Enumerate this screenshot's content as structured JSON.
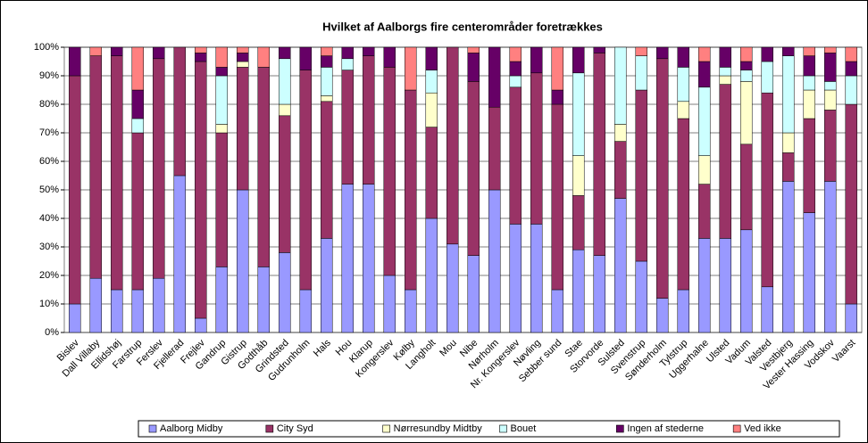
{
  "chart_data": {
    "type": "stacked_bar",
    "title": "Hvilket af Aalborgs fire centerområder foretrækkes",
    "categories": [
      "Bislev",
      "Dall Villaby",
      "Ellidshøj",
      "Farstrup",
      "Ferslev",
      "Fjellerad",
      "Frejlev",
      "Gandrup",
      "Gistrup",
      "Godthåb",
      "Grindsted",
      "Gudrunholm",
      "Hals",
      "Hou",
      "Klarup",
      "Kongerslev",
      "Kølby",
      "Langholt",
      "Mou",
      "Nibe",
      "Nørholm",
      "Nr. Kongerslev",
      "Nøvling",
      "Sebber sund",
      "Stae",
      "Storvorde",
      "Sulsted",
      "Svenstrup",
      "Sønderholm",
      "Tylstrup",
      "Uggerhalne",
      "Ulsted",
      "Vadum",
      "Valsted",
      "Vestbjerg",
      "Vester Hassing",
      "Vodskov",
      "Vaarst"
    ],
    "series": [
      {
        "name": "Aalborg Midby",
        "color": "#9999ff",
        "values": [
          10,
          19,
          15,
          15,
          19,
          55,
          5,
          23,
          50,
          23,
          28,
          15,
          33,
          52,
          52,
          20,
          15,
          40,
          31,
          27,
          50,
          38,
          38,
          15,
          29,
          27,
          47,
          25,
          12,
          15,
          33,
          33,
          36,
          16,
          53,
          42,
          53,
          10
        ]
      },
      {
        "name": "City Syd",
        "color": "#993366",
        "values": [
          80,
          78,
          82,
          55,
          77,
          45,
          90,
          47,
          43,
          70,
          48,
          77,
          48,
          40,
          45,
          73,
          70,
          32,
          69,
          61,
          29,
          48,
          53,
          65,
          19,
          71,
          20,
          60,
          84,
          60,
          19,
          54,
          30,
          68,
          10,
          33,
          25,
          70
        ]
      },
      {
        "name": "Nørresundby Midtby",
        "color": "#ffffcc",
        "values": [
          0,
          0,
          0,
          0,
          0,
          0,
          0,
          3,
          2,
          0,
          4,
          0,
          2,
          0,
          0,
          0,
          0,
          12,
          0,
          0,
          0,
          0,
          0,
          0,
          14,
          0,
          6,
          0,
          0,
          6,
          10,
          3,
          22,
          0,
          7,
          10,
          7,
          0
        ]
      },
      {
        "name": "Bouet",
        "color": "#ccffff",
        "values": [
          0,
          0,
          0,
          5,
          0,
          0,
          0,
          17,
          0,
          0,
          16,
          0,
          10,
          4,
          0,
          0,
          0,
          8,
          0,
          0,
          0,
          4,
          0,
          0,
          29,
          0,
          27,
          12,
          0,
          12,
          24,
          3,
          4,
          11,
          27,
          5,
          3,
          10
        ]
      },
      {
        "name": "Ingen af stederne",
        "color": "#660066",
        "values": [
          10,
          0,
          3,
          10,
          4,
          0,
          3,
          3,
          3,
          0,
          4,
          8,
          4,
          4,
          3,
          7,
          0,
          8,
          0,
          10,
          21,
          5,
          9,
          5,
          9,
          2,
          0,
          0,
          4,
          7,
          9,
          7,
          3,
          5,
          3,
          7,
          10,
          5
        ]
      },
      {
        "name": "Ved ikke",
        "color": "#ff8080",
        "values": [
          0,
          3,
          0,
          15,
          0,
          0,
          2,
          7,
          2,
          7,
          0,
          0,
          3,
          0,
          0,
          0,
          15,
          0,
          0,
          2,
          0,
          5,
          0,
          15,
          0,
          0,
          0,
          3,
          0,
          0,
          5,
          0,
          5,
          0,
          0,
          3,
          2,
          5
        ]
      }
    ],
    "ylim": [
      0,
      100
    ],
    "yticks": [
      {
        "value": 0,
        "label": "0%"
      },
      {
        "value": 10,
        "label": "10%"
      },
      {
        "value": 20,
        "label": "20%"
      },
      {
        "value": 30,
        "label": "30%"
      },
      {
        "value": 40,
        "label": "40%"
      },
      {
        "value": 50,
        "label": "50%"
      },
      {
        "value": 60,
        "label": "60%"
      },
      {
        "value": 70,
        "label": "70%"
      },
      {
        "value": 80,
        "label": "80%"
      },
      {
        "value": 90,
        "label": "90%"
      },
      {
        "value": 100,
        "label": "100%"
      }
    ],
    "grid": true,
    "legend": "bottom"
  }
}
